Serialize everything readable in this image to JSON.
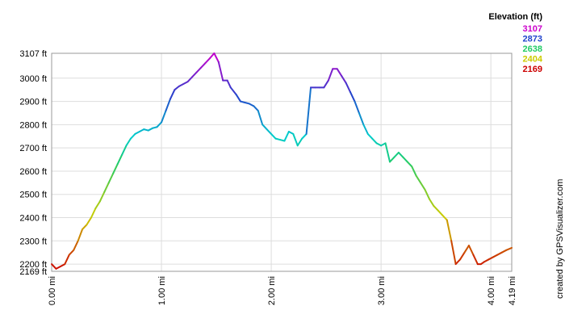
{
  "chart_data": {
    "type": "line",
    "title": "",
    "xlabel": "",
    "ylabel": "",
    "legend": {
      "title": "Elevation (ft)",
      "position": "top-right",
      "entries": [
        {
          "label": "3107",
          "color": "#cc00cc"
        },
        {
          "label": "2873",
          "color": "#2244cc"
        },
        {
          "label": "2638",
          "color": "#22cc66"
        },
        {
          "label": "2404",
          "color": "#cccc00"
        },
        {
          "label": "2169",
          "color": "#cc0000"
        }
      ]
    },
    "credit": "created by GPSVisualizer.com",
    "xlim": [
      0,
      4.19
    ],
    "ylim": [
      2169,
      3107
    ],
    "grid": true,
    "x_ticks": [
      {
        "value": 0,
        "label": "0.00 mi"
      },
      {
        "value": 1,
        "label": "1.00 mi"
      },
      {
        "value": 2,
        "label": "2.00 mi"
      },
      {
        "value": 3,
        "label": "3.00 mi"
      },
      {
        "value": 4,
        "label": "4.00 mi"
      },
      {
        "value": 4.19,
        "label": "4.19 mi"
      }
    ],
    "y_ticks": [
      {
        "value": 2169,
        "label": "2169 ft"
      },
      {
        "value": 2200,
        "label": "2200 ft"
      },
      {
        "value": 2300,
        "label": "2300 ft"
      },
      {
        "value": 2400,
        "label": "2400 ft"
      },
      {
        "value": 2500,
        "label": "2500 ft"
      },
      {
        "value": 2600,
        "label": "2600 ft"
      },
      {
        "value": 2700,
        "label": "2700 ft"
      },
      {
        "value": 2800,
        "label": "2800 ft"
      },
      {
        "value": 2900,
        "label": "2900 ft"
      },
      {
        "value": 3000,
        "label": "3000 ft"
      },
      {
        "value": 3107,
        "label": "3107 ft"
      }
    ],
    "series": [
      {
        "x": [
          0.0,
          0.04,
          0.08,
          0.12,
          0.16,
          0.2,
          0.24,
          0.28,
          0.32,
          0.36,
          0.4,
          0.44,
          0.48,
          0.52,
          0.56,
          0.6,
          0.64,
          0.68,
          0.72,
          0.76,
          0.8,
          0.84,
          0.88,
          0.92,
          0.96,
          1.0,
          1.04,
          1.08,
          1.12,
          1.16,
          1.2,
          1.24,
          1.28,
          1.32,
          1.36,
          1.4,
          1.44,
          1.48,
          1.52,
          1.56,
          1.6,
          1.63,
          1.68,
          1.72,
          1.76,
          1.8,
          1.84,
          1.88,
          1.92,
          1.96,
          2.0,
          2.04,
          2.08,
          2.12,
          2.16,
          2.2,
          2.24,
          2.28,
          2.32,
          2.36,
          2.4,
          2.44,
          2.48,
          2.52,
          2.56,
          2.6,
          2.64,
          2.68,
          2.72,
          2.76,
          2.8,
          2.84,
          2.88,
          2.92,
          2.96,
          3.0,
          3.04,
          3.08,
          3.12,
          3.16,
          3.2,
          3.24,
          3.28,
          3.32,
          3.36,
          3.4,
          3.44,
          3.48,
          3.52,
          3.56,
          3.6,
          3.64,
          3.68,
          3.72,
          3.76,
          3.8,
          3.84,
          3.88,
          3.91,
          3.94,
          3.98,
          4.02,
          4.06,
          4.1,
          4.14,
          4.19
        ],
        "y": [
          2200,
          2180,
          2190,
          2200,
          2240,
          2260,
          2300,
          2350,
          2370,
          2400,
          2440,
          2470,
          2510,
          2550,
          2590,
          2630,
          2670,
          2710,
          2740,
          2760,
          2770,
          2780,
          2775,
          2785,
          2790,
          2810,
          2860,
          2910,
          2950,
          2965,
          2975,
          2985,
          3005,
          3025,
          3045,
          3065,
          3085,
          3107,
          3070,
          2990,
          2990,
          2960,
          2930,
          2900,
          2895,
          2890,
          2880,
          2860,
          2800,
          2780,
          2760,
          2740,
          2735,
          2730,
          2770,
          2760,
          2710,
          2740,
          2760,
          2960,
          2960,
          2960,
          2960,
          2990,
          3040,
          3040,
          3010,
          2980,
          2940,
          2900,
          2850,
          2800,
          2760,
          2740,
          2720,
          2710,
          2720,
          2640,
          2660,
          2680,
          2660,
          2640,
          2620,
          2580,
          2550,
          2520,
          2480,
          2450,
          2430,
          2410,
          2390,
          2300,
          2200,
          2220,
          2250,
          2280,
          2240,
          2200,
          2200,
          2210,
          2220,
          2230,
          2240,
          2250,
          2260,
          2270
        ]
      }
    ]
  }
}
